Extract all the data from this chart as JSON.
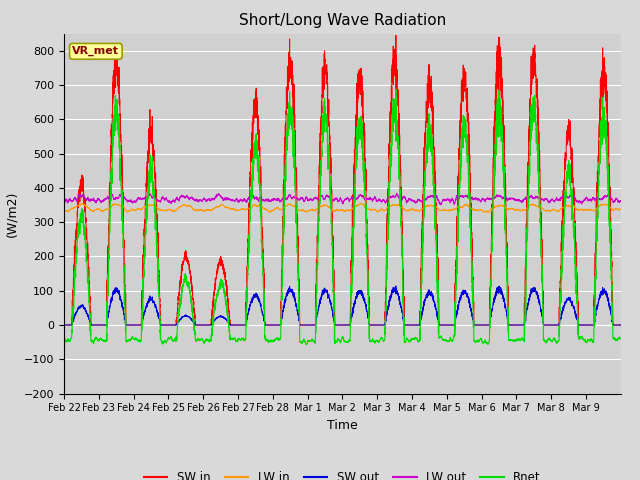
{
  "title": "Short/Long Wave Radiation",
  "ylabel": "(W/m2)",
  "xlabel": "Time",
  "station_label": "VR_met",
  "ylim": [
    -200,
    850
  ],
  "yticks": [
    -200,
    -100,
    0,
    100,
    200,
    300,
    400,
    500,
    600,
    700,
    800
  ],
  "bg_color": "#d9d9d9",
  "plot_bg_color": "#d0d0d0",
  "colors": {
    "SW_in": "#ff0000",
    "LW_in": "#ff9900",
    "SW_out": "#0000dd",
    "LW_out": "#cc00cc",
    "Rnet": "#00dd00"
  },
  "legend_labels": [
    "SW in",
    "LW in",
    "SW out",
    "LW out",
    "Rnet"
  ],
  "x_tick_labels": [
    "Feb 22",
    "Feb 23",
    "Feb 24",
    "Feb 25",
    "Feb 26",
    "Feb 27",
    "Feb 28",
    "Mar 1",
    "Mar 2",
    "Mar 3",
    "Mar 4",
    "Mar 5",
    "Mar 6",
    "Mar 7",
    "Mar 8",
    "Mar 9"
  ],
  "n_days": 16,
  "pts_per_day": 288
}
